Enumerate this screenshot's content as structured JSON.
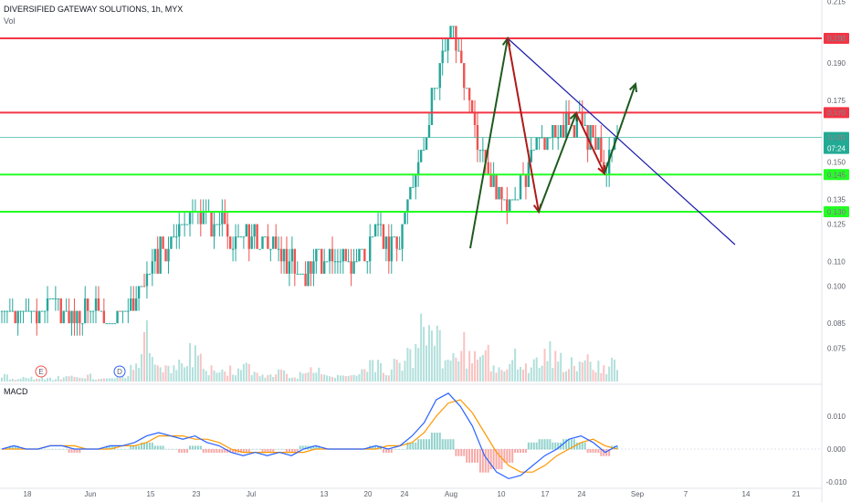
{
  "header": {
    "symbol_line": "DIVERSIFIED GATEWAY SOLUTIONS, 1h, MYX",
    "volume_label": "Vol",
    "macd_label": "MACD"
  },
  "chart_data": {
    "type": "candlestick",
    "price_axis_ticks": [
      "0.215",
      "0.200",
      "0.190",
      "0.175",
      "0.170",
      "0.160",
      "0.150",
      "0.145",
      "0.135",
      "0.130",
      "0.125",
      "0.110",
      "0.100",
      "0.085",
      "0.075"
    ],
    "macd_axis_ticks": [
      "0.010",
      "0.000",
      "-0.010"
    ],
    "x_axis_ticks": [
      "18",
      "Jun",
      "15",
      "23",
      "Jul",
      "13",
      "20",
      "24",
      "Aug",
      "10",
      "17",
      "24",
      "Sep",
      "7",
      "14",
      "21"
    ],
    "levels": [
      {
        "label": "0.200",
        "value": 0.2,
        "color": "#f23645"
      },
      {
        "label": "0.170",
        "value": 0.17,
        "color": "#f23645"
      },
      {
        "label": "0.145",
        "value": 0.145,
        "color": "#22ff22"
      },
      {
        "label": "0.130",
        "value": 0.13,
        "color": "#22ff22"
      }
    ],
    "last_price": {
      "label": "0.160",
      "value": 0.16,
      "countdown": "07:24",
      "color": "#22ab94"
    },
    "event_markers": [
      "E",
      "D"
    ],
    "price_path": [
      0.09,
      0.088,
      0.088,
      0.09,
      0.094,
      0.092,
      0.091,
      0.09,
      0.088,
      0.086,
      0.088,
      0.095,
      0.105,
      0.112,
      0.12,
      0.125,
      0.13,
      0.128,
      0.126,
      0.122,
      0.118,
      0.123,
      0.115,
      0.112,
      0.108,
      0.105,
      0.113,
      0.112,
      0.113,
      0.112,
      0.113,
      0.128,
      0.117,
      0.12,
      0.14,
      0.155,
      0.185,
      0.2,
      0.195,
      0.17,
      0.15,
      0.135,
      0.132,
      0.14,
      0.155,
      0.162,
      0.158,
      0.168,
      0.165,
      0.158,
      0.15,
      0.16
    ],
    "volume_path": [
      0.1,
      0.05,
      0.08,
      0.06,
      0.05,
      0.07,
      0.08,
      0.1,
      0.05,
      0.06,
      0.1,
      0.3,
      0.9,
      0.3,
      0.2,
      0.3,
      0.5,
      0.2,
      0.15,
      0.2,
      0.25,
      0.2,
      0.1,
      0.15,
      0.1,
      0.12,
      0.2,
      0.1,
      0.1,
      0.1,
      0.15,
      0.3,
      0.15,
      0.3,
      0.5,
      1.0,
      0.7,
      0.5,
      0.6,
      0.4,
      0.5,
      0.3,
      0.3,
      0.4,
      0.3,
      0.5,
      0.4,
      0.3,
      0.3,
      0.35,
      0.2,
      0.3
    ],
    "macd_path": [
      0.0,
      0.001,
      0.0,
      0.0,
      0.001,
      0.001,
      0.0,
      0.0,
      0.0,
      0.001,
      0.001,
      0.002,
      0.004,
      0.005,
      0.004,
      0.003,
      0.004,
      0.002,
      0.001,
      -0.001,
      -0.002,
      -0.001,
      -0.002,
      -0.001,
      -0.002,
      0.0,
      0.001,
      0.0,
      0.0,
      0.0,
      0.0,
      0.001,
      0.0,
      0.001,
      0.004,
      0.008,
      0.015,
      0.017,
      0.013,
      0.007,
      -0.002,
      -0.007,
      -0.009,
      -0.008,
      -0.005,
      -0.002,
      0.0,
      0.003,
      0.004,
      0.002,
      -0.001,
      0.001
    ],
    "signal_path": [
      0.0,
      0.0,
      0.0,
      0.0,
      0.001,
      0.001,
      0.001,
      0.0,
      0.0,
      0.0,
      0.001,
      0.001,
      0.002,
      0.004,
      0.004,
      0.004,
      0.003,
      0.003,
      0.002,
      0.0,
      -0.001,
      -0.001,
      -0.001,
      -0.001,
      -0.001,
      -0.001,
      0.0,
      0.0,
      0.0,
      0.0,
      0.0,
      0.0,
      0.001,
      0.001,
      0.002,
      0.005,
      0.01,
      0.014,
      0.015,
      0.011,
      0.005,
      -0.001,
      -0.005,
      -0.007,
      -0.007,
      -0.005,
      -0.002,
      0.0,
      0.002,
      0.003,
      0.001,
      0.0
    ]
  }
}
